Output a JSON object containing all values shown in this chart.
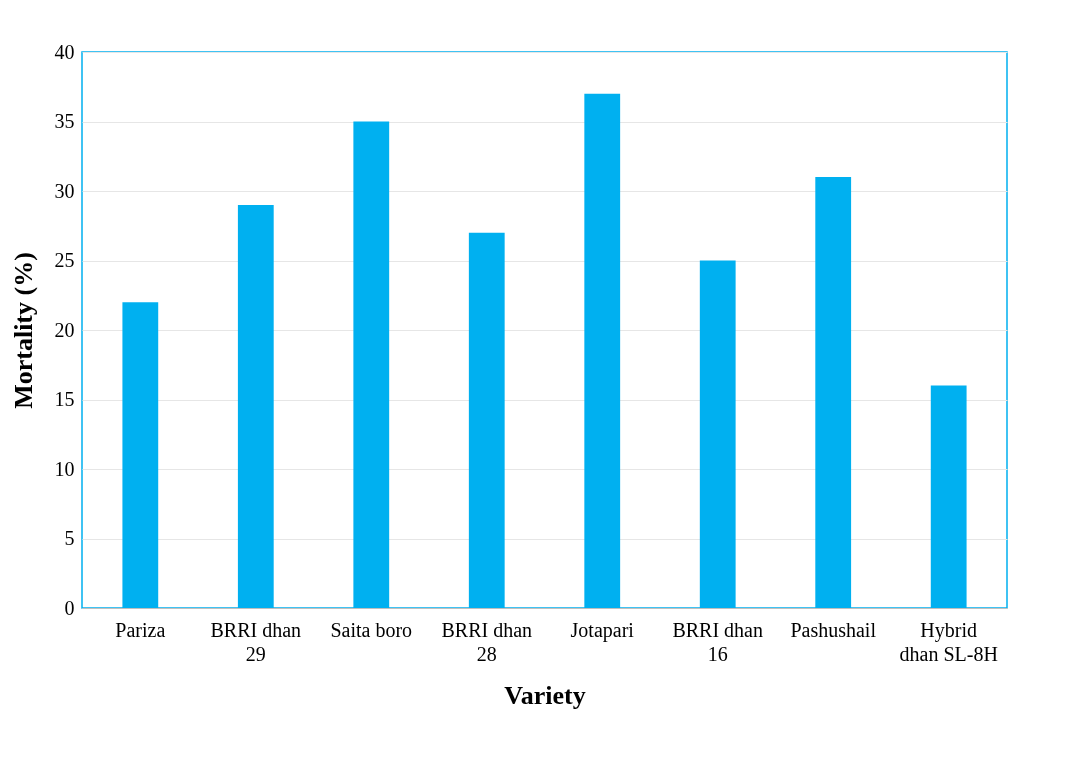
{
  "chart_data": {
    "type": "bar",
    "xlabel": "Variety",
    "ylabel": "Mortality (%)",
    "categories": [
      "Pariza",
      "BRRI dhan 29",
      "Saita boro",
      "BRRI dhan 28",
      "Jotapari",
      "BRRI dhan 16",
      "Pashushail",
      "Hybrid dhan SL-8H"
    ],
    "values": [
      22,
      29,
      35,
      27,
      37,
      25,
      31,
      16
    ],
    "color": "#00b0f0",
    "ylim": [
      0,
      40
    ],
    "yticks": [
      0,
      5,
      10,
      15,
      20,
      25,
      30,
      35,
      40
    ],
    "grid": "y"
  }
}
